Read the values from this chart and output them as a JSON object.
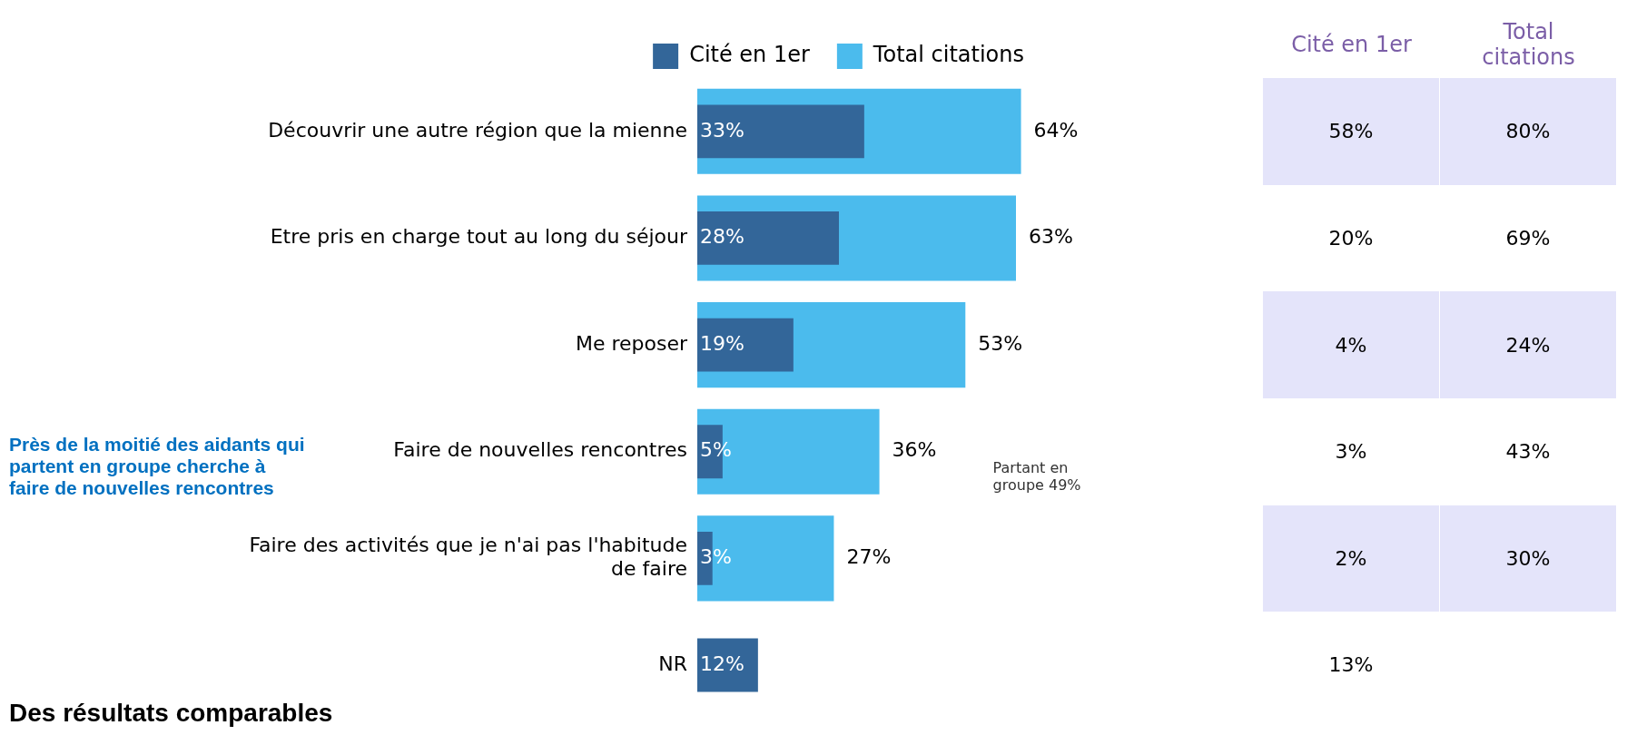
{
  "chart_data": [
    {
      "type": "bar",
      "orientation": "horizontal",
      "categories": [
        "Découvrir une autre région que la mienne",
        "Etre pris en charge tout au long du séjour",
        "Me reposer",
        "Faire de nouvelles rencontres",
        "Faire des activités que je n'ai pas l'habitude de faire",
        "NR"
      ],
      "series": [
        {
          "name": "Cité en 1er",
          "color": "#336699",
          "values": [
            33,
            28,
            19,
            5,
            3,
            12
          ],
          "value_labels": [
            "33%",
            "28%",
            "19%",
            "5%",
            "3%",
            "12%"
          ]
        },
        {
          "name": "Total citations",
          "color": "#4bbbed",
          "values": [
            64,
            63,
            53,
            36,
            27,
            null
          ],
          "value_labels": [
            "64%",
            "63%",
            "53%",
            "36%",
            "27%",
            null
          ]
        }
      ],
      "legend": "top",
      "grid": false,
      "annotations": [
        "Près de la moitié des aidants qui partent en groupe cherche à faire de nouvelles rencontres",
        "Partant en groupe 49%",
        "Des résultats comparables"
      ]
    },
    {
      "type": "other",
      "categories": [
        "Cité en 1er",
        "Total citations"
      ],
      "cell_labels": [
        [
          "58%",
          "80%"
        ],
        [
          "20%",
          "69%"
        ],
        [
          "4%",
          "24%"
        ],
        [
          "3%",
          "43%"
        ],
        [
          "2%",
          "30%"
        ],
        [
          "13%",
          null
        ]
      ],
      "data_labels": true,
      "color": "#e4e4fa"
    }
  ]
}
